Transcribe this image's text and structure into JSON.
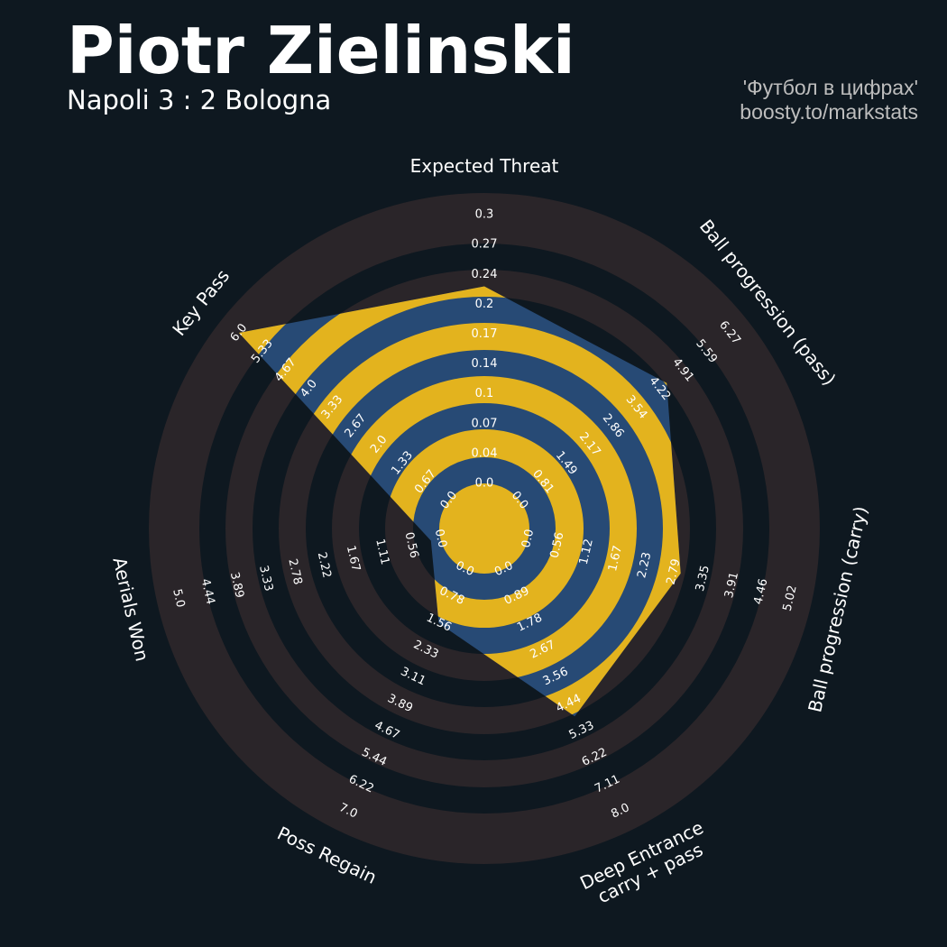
{
  "header": {
    "title": "Piotr Zielinski",
    "subtitle": "Napoli 3 : 2 Bologna",
    "credit_line1": "'Футбол в цифрах'",
    "credit_line2": "boosty.to/markstats"
  },
  "colors": {
    "background": "#0e1820",
    "ring_band": "#2a2529",
    "polygon_fill": "#274a75",
    "polygon_band": "#e3b31e",
    "text": "#ffffff",
    "credit": "#bdbdbd"
  },
  "chart_data": {
    "type": "radar",
    "axes": [
      {
        "label": [
          "Expected Threat"
        ],
        "value": 0.22,
        "max": 0.3,
        "ticks": [
          "0.0",
          "0.04",
          "0.07",
          "0.1",
          "0.14",
          "0.17",
          "0.2",
          "0.24",
          "0.27",
          "0.3"
        ]
      },
      {
        "label": [
          "Ball progression (pass)"
        ],
        "value": 4.39,
        "max": 6.27,
        "ticks": [
          "0.0",
          "0.81",
          "1.49",
          "2.17",
          "2.86",
          "3.54",
          "4.22",
          "4.91",
          "5.59",
          "6.27"
        ]
      },
      {
        "label": [
          "Ball progression (carry)"
        ],
        "value": 2.92,
        "max": 5.02,
        "ticks": [
          "0.0",
          "0.56",
          "1.12",
          "1.67",
          "2.23",
          "2.79",
          "3.35",
          "3.91",
          "4.46",
          "5.02"
        ]
      },
      {
        "label": [
          "Deep Entrance",
          "carry + pass"
        ],
        "value": 4.86,
        "max": 8.0,
        "ticks": [
          "0.0",
          "0.89",
          "1.78",
          "2.67",
          "3.56",
          "4.44",
          "5.33",
          "6.22",
          "7.11",
          "8.0"
        ]
      },
      {
        "label": [
          "Poss Regain"
        ],
        "value": 1.56,
        "max": 7.0,
        "ticks": [
          "0.0",
          "0.78",
          "1.56",
          "2.33",
          "3.11",
          "3.89",
          "4.67",
          "5.44",
          "6.22",
          "7.0"
        ]
      },
      {
        "label": [
          "Aerials Won"
        ],
        "value": 0.18,
        "max": 5.0,
        "ticks": [
          "0.0",
          "0.56",
          "1.11",
          "1.67",
          "2.22",
          "2.78",
          "3.33",
          "3.89",
          "4.44",
          "5.0"
        ]
      },
      {
        "label": [
          "Key Pass"
        ],
        "value": 6.0,
        "max": 6.0,
        "ticks": [
          "0.0",
          "0.67",
          "1.33",
          "2.0",
          "2.67",
          "3.33",
          "4.0",
          "4.67",
          "5.33",
          "6.0"
        ]
      }
    ]
  }
}
